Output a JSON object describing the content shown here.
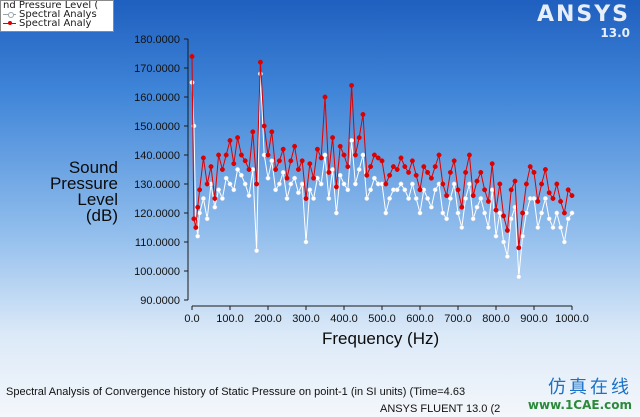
{
  "legend": {
    "title": "nd Pressure Level (",
    "items": [
      {
        "label": "Spectral Analys",
        "color": "#ffffff"
      },
      {
        "label": "Spectral Analy",
        "color": "#dd0000"
      }
    ]
  },
  "logo": {
    "name": "ANSYS",
    "version": "13.0"
  },
  "axis": {
    "ylabel_lines": [
      "Sound",
      "Pressure",
      "Level",
      "(dB)"
    ],
    "xlabel": "Frequency (Hz)"
  },
  "footer": {
    "line1": "Spectral Analysis of Convergence history of Static Pressure on point-1 (in SI units)  (Time=4.63",
    "line2": "ANSYS FLUENT 13.0 (2"
  },
  "watermark": {
    "text_cn": "仿真在线",
    "site": "www.1CAE.com"
  },
  "colors": {
    "series_white": "#ffffff",
    "series_red": "#dd0000",
    "axis": "#1a1a1a"
  },
  "chart_data": {
    "type": "line",
    "title": "",
    "xlabel": "Frequency (Hz)",
    "ylabel": "Sound Pressure Level (dB)",
    "xlim": [
      0,
      1000
    ],
    "ylim": [
      90,
      180
    ],
    "xticks": [
      "0.0",
      "100.0",
      "200.0",
      "300.0",
      "400.0",
      "500.0",
      "600.0",
      "700.0",
      "800.0",
      "900.0",
      "1000.0"
    ],
    "yticks": [
      "90.0000",
      "100.0000",
      "110.0000",
      "120.0000",
      "130.0000",
      "140.0000",
      "150.0000",
      "160.0000",
      "170.0000",
      "180.0000"
    ],
    "legend_position": "top-left",
    "grid": false,
    "series": [
      {
        "name": "Spectral Analys",
        "color": "#ffffff",
        "x": [
          0,
          5,
          10,
          15,
          20,
          30,
          40,
          50,
          60,
          70,
          80,
          90,
          100,
          110,
          120,
          130,
          140,
          150,
          160,
          170,
          180,
          190,
          200,
          210,
          220,
          230,
          240,
          250,
          260,
          270,
          280,
          290,
          300,
          310,
          320,
          330,
          340,
          350,
          360,
          370,
          380,
          390,
          400,
          410,
          420,
          430,
          440,
          450,
          460,
          470,
          480,
          490,
          500,
          510,
          520,
          530,
          540,
          550,
          560,
          570,
          580,
          590,
          600,
          610,
          620,
          630,
          640,
          650,
          660,
          670,
          680,
          690,
          700,
          710,
          720,
          730,
          740,
          750,
          760,
          770,
          780,
          790,
          800,
          810,
          820,
          830,
          840,
          850,
          860,
          870,
          880,
          890,
          900,
          910,
          920,
          930,
          940,
          950,
          960,
          970,
          980,
          990,
          1000
        ],
        "values": [
          165,
          150,
          118,
          112,
          120,
          125,
          118,
          130,
          122,
          128,
          125,
          132,
          130,
          128,
          135,
          133,
          130,
          126,
          135,
          107,
          168,
          140,
          132,
          138,
          128,
          130,
          134,
          125,
          130,
          132,
          127,
          130,
          110,
          128,
          125,
          132,
          130,
          140,
          125,
          135,
          120,
          133,
          130,
          128,
          145,
          130,
          135,
          140,
          125,
          128,
          132,
          130,
          130,
          120,
          125,
          128,
          128,
          130,
          128,
          125,
          130,
          125,
          120,
          128,
          125,
          122,
          128,
          130,
          120,
          118,
          125,
          130,
          120,
          115,
          125,
          130,
          118,
          122,
          125,
          120,
          115,
          128,
          112,
          120,
          110,
          105,
          118,
          122,
          98,
          112,
          120,
          125,
          125,
          115,
          120,
          125,
          118,
          115,
          120,
          115,
          110,
          118,
          120
        ]
      },
      {
        "name": "Spectral Analy",
        "color": "#dd0000",
        "x": [
          0,
          5,
          10,
          15,
          20,
          30,
          40,
          50,
          60,
          70,
          80,
          90,
          100,
          110,
          120,
          130,
          140,
          150,
          160,
          170,
          180,
          190,
          200,
          210,
          220,
          230,
          240,
          250,
          260,
          270,
          280,
          290,
          300,
          310,
          320,
          330,
          340,
          350,
          360,
          370,
          380,
          390,
          400,
          410,
          420,
          430,
          440,
          450,
          460,
          470,
          480,
          490,
          500,
          510,
          520,
          530,
          540,
          550,
          560,
          570,
          580,
          590,
          600,
          610,
          620,
          630,
          640,
          650,
          660,
          670,
          680,
          690,
          700,
          710,
          720,
          730,
          740,
          750,
          760,
          770,
          780,
          790,
          800,
          810,
          820,
          830,
          840,
          850,
          860,
          870,
          880,
          890,
          900,
          910,
          920,
          930,
          940,
          950,
          960,
          970,
          980,
          990,
          1000
        ],
        "values": [
          174,
          118,
          115,
          122,
          128,
          139,
          130,
          136,
          125,
          140,
          135,
          140,
          145,
          137,
          146,
          140,
          138,
          135,
          148,
          130,
          172,
          150,
          140,
          148,
          135,
          138,
          142,
          132,
          138,
          143,
          135,
          138,
          125,
          137,
          132,
          142,
          139,
          160,
          134,
          146,
          129,
          143,
          140,
          136,
          164,
          140,
          146,
          154,
          133,
          136,
          140,
          139,
          138,
          130,
          133,
          136,
          135,
          139,
          136,
          134,
          138,
          133,
          128,
          136,
          134,
          132,
          136,
          140,
          130,
          126,
          134,
          138,
          128,
          122,
          134,
          140,
          126,
          131,
          134,
          128,
          124,
          137,
          121,
          130,
          119,
          114,
          128,
          131,
          108,
          120,
          130,
          136,
          134,
          124,
          130,
          135,
          127,
          125,
          130,
          124,
          120,
          128,
          126
        ]
      }
    ]
  }
}
